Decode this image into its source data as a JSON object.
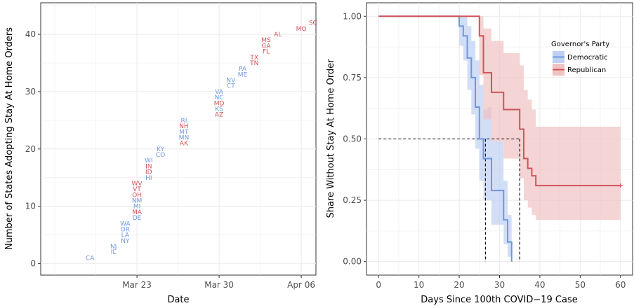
{
  "colors": {
    "democratic": "#6F97DF",
    "republican": "#D0545A",
    "grid": "#ebebeb",
    "band_dem": "#BFD0F2",
    "band_rep": "#F0C2C2"
  },
  "chart_data": [
    {
      "type": "scatter",
      "title": "",
      "xlabel": "Date",
      "ylabel": "Number of States Adopting Stay At Home Orders",
      "xlim": [
        "2020-03-15",
        "2020-04-07"
      ],
      "ylim": [
        0,
        45
      ],
      "grid": true,
      "x_ticks": [
        {
          "date": "2020-03-23",
          "label": "Mar 23"
        },
        {
          "date": "2020-03-30",
          "label": "Mar 30"
        },
        {
          "date": "2020-04-06",
          "label": "Apr 06"
        }
      ],
      "y_ticks": [
        0,
        10,
        20,
        30,
        40
      ],
      "points": [
        {
          "state": "CA",
          "party": "D",
          "date": "2020-03-19",
          "y": 1
        },
        {
          "state": "IL",
          "party": "D",
          "date": "2020-03-21",
          "y": 2
        },
        {
          "state": "NJ",
          "party": "D",
          "date": "2020-03-21",
          "y": 3
        },
        {
          "state": "NY",
          "party": "D",
          "date": "2020-03-22",
          "y": 4
        },
        {
          "state": "LA",
          "party": "D",
          "date": "2020-03-22",
          "y": 5
        },
        {
          "state": "OR",
          "party": "D",
          "date": "2020-03-22",
          "y": 6
        },
        {
          "state": "WA",
          "party": "D",
          "date": "2020-03-22",
          "y": 7
        },
        {
          "state": "DE",
          "party": "D",
          "date": "2020-03-23",
          "y": 8
        },
        {
          "state": "MA",
          "party": "R",
          "date": "2020-03-23",
          "y": 9
        },
        {
          "state": "MI",
          "party": "D",
          "date": "2020-03-23",
          "y": 10
        },
        {
          "state": "NM",
          "party": "D",
          "date": "2020-03-23",
          "y": 11
        },
        {
          "state": "OH",
          "party": "R",
          "date": "2020-03-23",
          "y": 12
        },
        {
          "state": "VT",
          "party": "R",
          "date": "2020-03-23",
          "y": 13
        },
        {
          "state": "WV",
          "party": "R",
          "date": "2020-03-23",
          "y": 14
        },
        {
          "state": "HI",
          "party": "D",
          "date": "2020-03-24",
          "y": 15
        },
        {
          "state": "ID",
          "party": "R",
          "date": "2020-03-24",
          "y": 16
        },
        {
          "state": "IN",
          "party": "R",
          "date": "2020-03-24",
          "y": 17
        },
        {
          "state": "WI",
          "party": "D",
          "date": "2020-03-24",
          "y": 18
        },
        {
          "state": "CO",
          "party": "D",
          "date": "2020-03-25",
          "y": 19
        },
        {
          "state": "KY",
          "party": "D",
          "date": "2020-03-25",
          "y": 20
        },
        {
          "state": "AK",
          "party": "R",
          "date": "2020-03-27",
          "y": 21
        },
        {
          "state": "MN",
          "party": "D",
          "date": "2020-03-27",
          "y": 22
        },
        {
          "state": "MT",
          "party": "D",
          "date": "2020-03-27",
          "y": 23
        },
        {
          "state": "NH",
          "party": "R",
          "date": "2020-03-27",
          "y": 24
        },
        {
          "state": "RI",
          "party": "D",
          "date": "2020-03-27",
          "y": 25
        },
        {
          "state": "AZ",
          "party": "R",
          "date": "2020-03-30",
          "y": 26
        },
        {
          "state": "KS",
          "party": "D",
          "date": "2020-03-30",
          "y": 27
        },
        {
          "state": "MD",
          "party": "R",
          "date": "2020-03-30",
          "y": 28
        },
        {
          "state": "NC",
          "party": "D",
          "date": "2020-03-30",
          "y": 29
        },
        {
          "state": "VA",
          "party": "D",
          "date": "2020-03-30",
          "y": 30
        },
        {
          "state": "CT",
          "party": "D",
          "date": "2020-03-31",
          "y": 31
        },
        {
          "state": "NV",
          "party": "D",
          "date": "2020-03-31",
          "y": 32
        },
        {
          "state": "ME",
          "party": "D",
          "date": "2020-04-01",
          "y": 33
        },
        {
          "state": "PA",
          "party": "D",
          "date": "2020-04-01",
          "y": 34
        },
        {
          "state": "TN",
          "party": "R",
          "date": "2020-04-02",
          "y": 35
        },
        {
          "state": "TX",
          "party": "R",
          "date": "2020-04-02",
          "y": 36
        },
        {
          "state": "FL",
          "party": "R",
          "date": "2020-04-03",
          "y": 37
        },
        {
          "state": "GA",
          "party": "R",
          "date": "2020-04-03",
          "y": 38
        },
        {
          "state": "MS",
          "party": "R",
          "date": "2020-04-03",
          "y": 39
        },
        {
          "state": "AL",
          "party": "R",
          "date": "2020-04-04",
          "y": 40
        },
        {
          "state": "MO",
          "party": "R",
          "date": "2020-04-06",
          "y": 41
        },
        {
          "state": "SC",
          "party": "R",
          "date": "2020-04-07",
          "y": 42
        }
      ]
    },
    {
      "type": "line",
      "title": "",
      "xlabel": "Days Since 100th COVID−19 Case",
      "ylabel": "Share Without Stay At Home Order",
      "xlim": [
        0,
        60
      ],
      "ylim": [
        0,
        1
      ],
      "grid": true,
      "x_ticks": [
        0,
        10,
        20,
        30,
        40,
        50,
        60
      ],
      "y_ticks": [
        {
          "v": 0,
          "label": "0.00"
        },
        {
          "v": 0.25,
          "label": "0.25"
        },
        {
          "v": 0.5,
          "label": "0.50"
        },
        {
          "v": 0.75,
          "label": "0.75"
        },
        {
          "v": 1,
          "label": "1.00"
        }
      ],
      "legend": {
        "title": "Governor's Party",
        "position": "top-right"
      },
      "series": [
        {
          "name": "Democratic",
          "color_key": "democratic",
          "steps": [
            [
              0,
              1.0
            ],
            [
              20,
              0.96
            ],
            [
              21,
              0.92
            ],
            [
              22,
              0.83
            ],
            [
              23,
              0.75
            ],
            [
              24,
              0.63
            ],
            [
              25,
              0.5
            ],
            [
              26,
              0.42
            ],
            [
              27,
              0.42
            ],
            [
              28,
              0.29
            ],
            [
              30,
              0.29
            ],
            [
              31,
              0.17
            ],
            [
              32,
              0.08
            ],
            [
              33,
              0.0
            ]
          ],
          "upper": [
            [
              0,
              1.0
            ],
            [
              20,
              1.0
            ],
            [
              21,
              1.0
            ],
            [
              22,
              0.96
            ],
            [
              23,
              0.9
            ],
            [
              24,
              0.82
            ],
            [
              25,
              0.72
            ],
            [
              26,
              0.62
            ],
            [
              27,
              0.63
            ],
            [
              28,
              0.49
            ],
            [
              30,
              0.49
            ],
            [
              31,
              0.33
            ],
            [
              32,
              0.19
            ],
            [
              33,
              0.0
            ]
          ],
          "lower": [
            [
              0,
              1.0
            ],
            [
              20,
              0.88
            ],
            [
              21,
              0.82
            ],
            [
              22,
              0.7
            ],
            [
              23,
              0.6
            ],
            [
              24,
              0.46
            ],
            [
              25,
              0.33
            ],
            [
              26,
              0.25
            ],
            [
              27,
              0.25
            ],
            [
              28,
              0.15
            ],
            [
              30,
              0.15
            ],
            [
              31,
              0.07
            ],
            [
              32,
              0.02
            ],
            [
              33,
              0.0
            ]
          ],
          "median": 26.5
        },
        {
          "name": "Republican",
          "color_key": "republican",
          "steps": [
            [
              0,
              1.0
            ],
            [
              25,
              0.92
            ],
            [
              26,
              0.77
            ],
            [
              28,
              0.69
            ],
            [
              31,
              0.62
            ],
            [
              35,
              0.54
            ],
            [
              36,
              0.42
            ],
            [
              37,
              0.38
            ],
            [
              38,
              0.35
            ],
            [
              39,
              0.31
            ],
            [
              60,
              0.31
            ]
          ],
          "upper": [
            [
              0,
              1.0
            ],
            [
              25,
              1.0
            ],
            [
              26,
              0.95
            ],
            [
              28,
              0.9
            ],
            [
              31,
              0.85
            ],
            [
              35,
              0.8
            ],
            [
              36,
              0.7
            ],
            [
              37,
              0.66
            ],
            [
              38,
              0.62
            ],
            [
              39,
              0.55
            ],
            [
              60,
              0.55
            ]
          ],
          "lower": [
            [
              0,
              1.0
            ],
            [
              25,
              0.76
            ],
            [
              26,
              0.58
            ],
            [
              28,
              0.49
            ],
            [
              31,
              0.42
            ],
            [
              35,
              0.34
            ],
            [
              36,
              0.25
            ],
            [
              37,
              0.22
            ],
            [
              38,
              0.19
            ],
            [
              39,
              0.17
            ],
            [
              60,
              0.17
            ]
          ],
          "median": 35,
          "censored_at": 60
        }
      ],
      "median_reference": 0.5
    }
  ]
}
